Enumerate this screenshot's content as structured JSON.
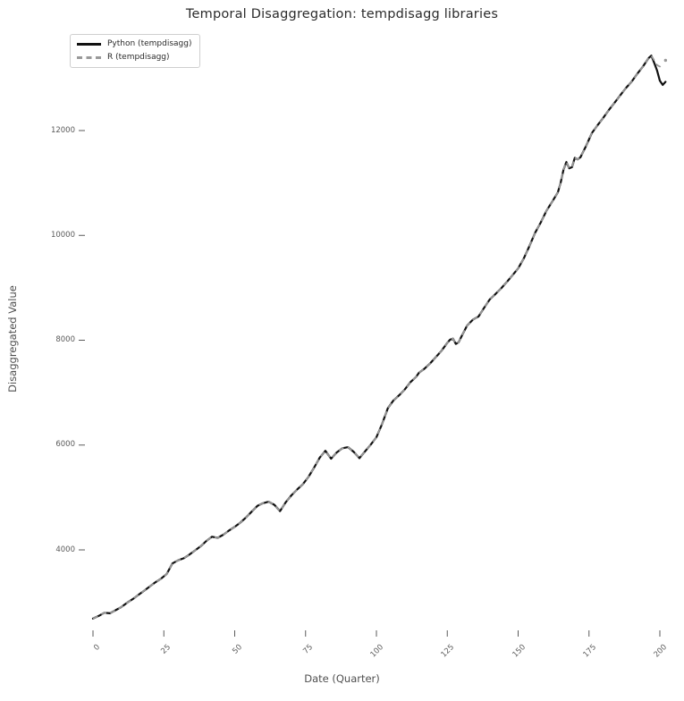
{
  "figure": {
    "background": "#ffffff",
    "grid": false,
    "spines": "none"
  },
  "chart_data": {
    "type": "line",
    "title": "Temporal Disaggregation: tempdisagg libraries",
    "xlabel": "Date (Quarter)",
    "ylabel": "Disaggregated Value",
    "x_ticks": [
      0,
      25,
      50,
      75,
      100,
      125,
      150,
      175,
      200
    ],
    "y_ticks": [
      4000,
      6000,
      8000,
      10000,
      12000
    ],
    "xlim": [
      -8,
      212
    ],
    "ylim": [
      2300,
      13900
    ],
    "grid": false,
    "legend_position": "upper left",
    "tick_color": "#5a5a5a",
    "series": [
      {
        "name": "Python (tempdisagg)",
        "color": "#111111",
        "line_style": "solid",
        "line_width": 2.2,
        "points": [
          [
            0,
            2690
          ],
          [
            2,
            2740
          ],
          [
            4,
            2800
          ],
          [
            6,
            2790
          ],
          [
            8,
            2850
          ],
          [
            10,
            2910
          ],
          [
            12,
            2990
          ],
          [
            14,
            3060
          ],
          [
            16,
            3140
          ],
          [
            18,
            3220
          ],
          [
            20,
            3300
          ],
          [
            22,
            3380
          ],
          [
            24,
            3450
          ],
          [
            26,
            3540
          ],
          [
            28,
            3740
          ],
          [
            30,
            3800
          ],
          [
            32,
            3840
          ],
          [
            34,
            3910
          ],
          [
            36,
            3990
          ],
          [
            38,
            4070
          ],
          [
            40,
            4170
          ],
          [
            42,
            4250
          ],
          [
            44,
            4230
          ],
          [
            46,
            4290
          ],
          [
            48,
            4370
          ],
          [
            50,
            4440
          ],
          [
            52,
            4520
          ],
          [
            54,
            4620
          ],
          [
            56,
            4730
          ],
          [
            58,
            4840
          ],
          [
            60,
            4890
          ],
          [
            62,
            4920
          ],
          [
            64,
            4860
          ],
          [
            66,
            4740
          ],
          [
            68,
            4910
          ],
          [
            70,
            5040
          ],
          [
            72,
            5150
          ],
          [
            74,
            5250
          ],
          [
            76,
            5390
          ],
          [
            78,
            5570
          ],
          [
            80,
            5760
          ],
          [
            82,
            5890
          ],
          [
            84,
            5740
          ],
          [
            86,
            5860
          ],
          [
            88,
            5940
          ],
          [
            90,
            5960
          ],
          [
            92,
            5870
          ],
          [
            94,
            5750
          ],
          [
            96,
            5880
          ],
          [
            98,
            6010
          ],
          [
            100,
            6150
          ],
          [
            102,
            6400
          ],
          [
            104,
            6700
          ],
          [
            106,
            6850
          ],
          [
            108,
            6950
          ],
          [
            110,
            7060
          ],
          [
            112,
            7200
          ],
          [
            114,
            7300
          ],
          [
            115,
            7380
          ],
          [
            117,
            7460
          ],
          [
            119,
            7560
          ],
          [
            121,
            7680
          ],
          [
            123,
            7800
          ],
          [
            125,
            7950
          ],
          [
            126,
            8010
          ],
          [
            127,
            8030
          ],
          [
            128,
            7930
          ],
          [
            129,
            7960
          ],
          [
            130,
            8070
          ],
          [
            132,
            8280
          ],
          [
            134,
            8390
          ],
          [
            136,
            8450
          ],
          [
            138,
            8620
          ],
          [
            140,
            8780
          ],
          [
            142,
            8880
          ],
          [
            144,
            8990
          ],
          [
            146,
            9110
          ],
          [
            148,
            9240
          ],
          [
            150,
            9370
          ],
          [
            152,
            9560
          ],
          [
            154,
            9800
          ],
          [
            156,
            10050
          ],
          [
            158,
            10250
          ],
          [
            160,
            10470
          ],
          [
            162,
            10640
          ],
          [
            164,
            10820
          ],
          [
            165,
            11000
          ],
          [
            166,
            11250
          ],
          [
            167,
            11400
          ],
          [
            168,
            11280
          ],
          [
            169,
            11300
          ],
          [
            170,
            11480
          ],
          [
            171,
            11450
          ],
          [
            172,
            11490
          ],
          [
            174,
            11710
          ],
          [
            176,
            11950
          ],
          [
            178,
            12100
          ],
          [
            180,
            12240
          ],
          [
            182,
            12390
          ],
          [
            184,
            12530
          ],
          [
            186,
            12670
          ],
          [
            188,
            12810
          ],
          [
            190,
            12930
          ],
          [
            192,
            13080
          ],
          [
            194,
            13220
          ],
          [
            196,
            13380
          ],
          [
            197,
            13430
          ],
          [
            198,
            13290
          ],
          [
            199,
            13150
          ],
          [
            200,
            12950
          ],
          [
            201,
            12870
          ],
          [
            202,
            12930
          ]
        ]
      },
      {
        "name": "R (tempdisagg)",
        "color": "#999999",
        "line_style": "dashed",
        "line_width": 1.8,
        "identical_to_series_0_until_x": 197,
        "tail_points": [
          [
            197,
            13430
          ],
          [
            198,
            13340
          ],
          [
            199,
            13250
          ],
          [
            200,
            13220
          ],
          [
            201,
            13290
          ]
        ],
        "end_marker_point": [
          202,
          13340
        ]
      }
    ]
  }
}
